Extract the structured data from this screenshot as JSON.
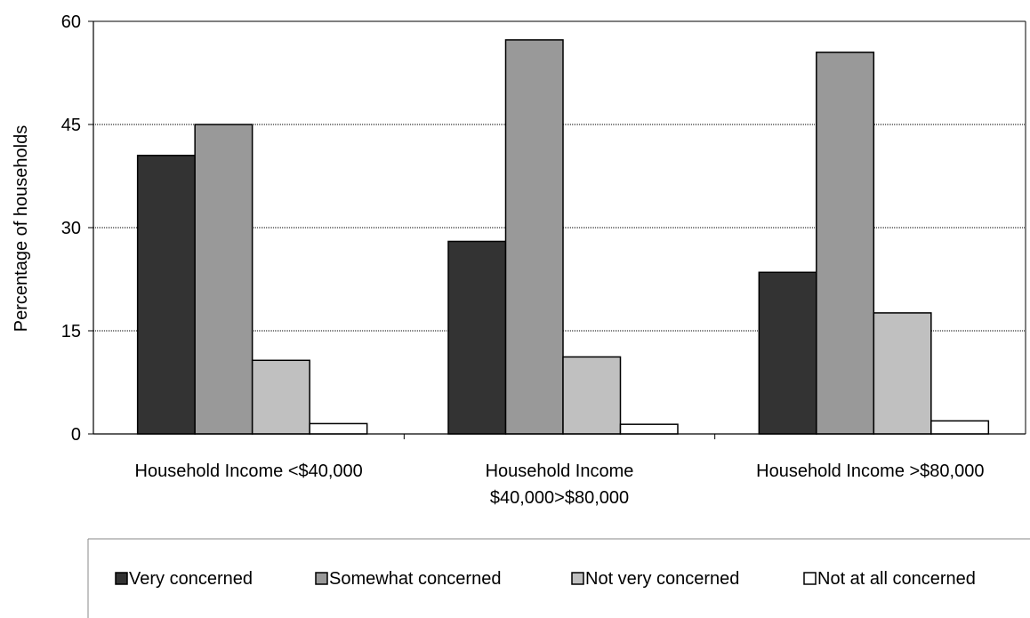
{
  "chart_data": {
    "type": "bar",
    "title": "",
    "xlabel": "",
    "ylabel": "Percentage of households",
    "ylim": [
      0,
      60
    ],
    "yticks": [
      0,
      15,
      30,
      45,
      60
    ],
    "grid": true,
    "legend_position": "bottom",
    "categories": [
      [
        "Household Income <$40,000"
      ],
      [
        "Household Income",
        "$40,000>$80,000"
      ],
      [
        "Household Income >$80,000"
      ]
    ],
    "series": [
      {
        "name": "Very concerned",
        "color": "#333333",
        "values": [
          40.5,
          28.0,
          23.5
        ]
      },
      {
        "name": "Somewhat concerned",
        "color": "#999999",
        "values": [
          45.0,
          57.3,
          55.5
        ]
      },
      {
        "name": "Not very concerned",
        "color": "#c0c0c0",
        "values": [
          10.7,
          11.2,
          17.6
        ]
      },
      {
        "name": "Not at all concerned",
        "color": "#ffffff",
        "values": [
          1.5,
          1.4,
          1.9
        ]
      }
    ]
  }
}
